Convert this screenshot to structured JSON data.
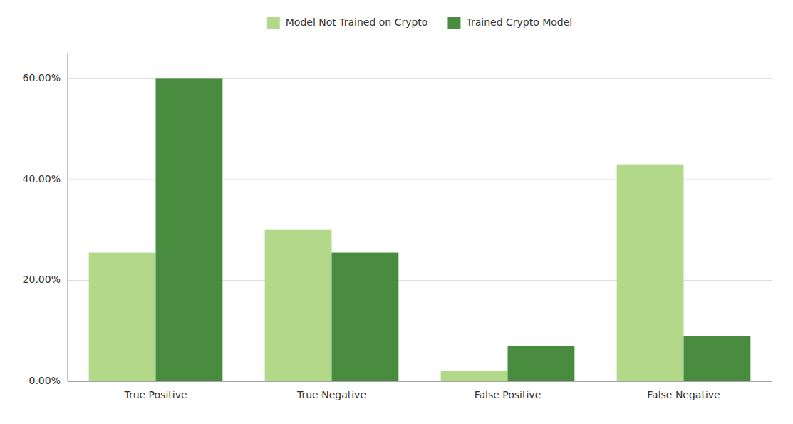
{
  "chart_data": {
    "type": "bar",
    "categories": [
      "True Positive",
      "True Negative",
      "False Positive",
      "False Negative"
    ],
    "series": [
      {
        "name": "Model Not Trained on Crypto",
        "color": "#b2d98a",
        "values": [
          0.255,
          0.3,
          0.02,
          0.43
        ]
      },
      {
        "name": "Trained Crypto Model",
        "color": "#4a8c3f",
        "values": [
          0.6,
          0.255,
          0.07,
          0.09
        ]
      }
    ],
    "ylim": [
      0,
      0.65
    ],
    "yticks": [
      {
        "value": 0.0,
        "label": "0.00%"
      },
      {
        "value": 0.2,
        "label": "20.00%"
      },
      {
        "value": 0.4,
        "label": "40.00%"
      },
      {
        "value": 0.6,
        "label": "60.00%"
      }
    ],
    "grid": true,
    "legend": "top"
  }
}
